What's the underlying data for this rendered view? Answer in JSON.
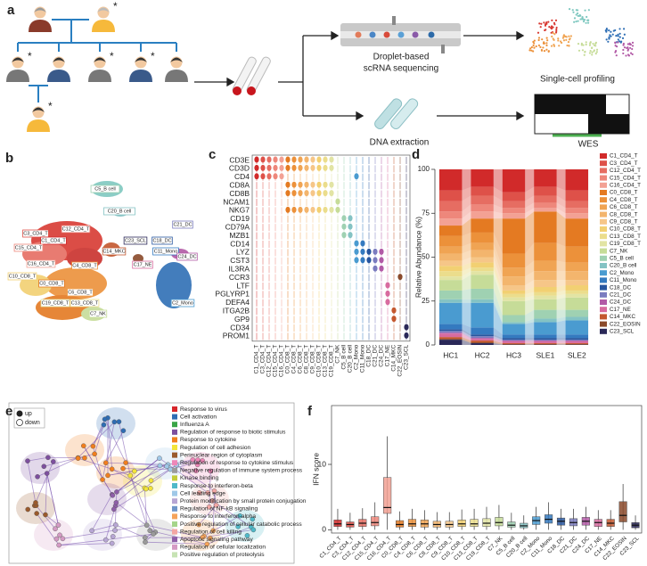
{
  "panel_labels": [
    "a",
    "b",
    "c",
    "d",
    "e",
    "f"
  ],
  "panel_a": {
    "marker": "*",
    "sequencing": [
      "Droplet-based",
      "scRNA sequencing"
    ],
    "profiling": "Single-cell profiling",
    "extraction": "DNA extraction",
    "wes": "WES"
  },
  "panel_b": {
    "clusters": [
      "C5_B cell",
      "C20_B cell",
      "C21_DC",
      "C23_SCL",
      "C18_DC",
      "C14_MKC",
      "C11_Mono",
      "C24_DC",
      "C2_Mono",
      "C17_NE",
      "C7_NK",
      "C3_CD4_T",
      "C12_CD4_T",
      "C1_CD4_T",
      "C15_CD4_T",
      "C16_CD4_T",
      "C4_CD8_T",
      "C0_CD8_T",
      "C10_CD8_T",
      "C6_CD8_T",
      "C19_CD8_T",
      "C13_CD8_T"
    ]
  },
  "panel_c": {
    "genes": [
      "CD3E",
      "CD3D",
      "CD4",
      "CD8A",
      "CD8B",
      "NCAM1",
      "NKG7",
      "CD19",
      "CD79A",
      "MZB1",
      "CD14",
      "LYZ",
      "CST3",
      "IL3RA",
      "CCR3",
      "LTF",
      "PGLYRP1",
      "DEFA4",
      "ITGA2B",
      "GP9",
      "CD34",
      "PROM1"
    ]
  },
  "panel_e": {
    "legend": [
      "up",
      "down"
    ],
    "terms": [
      {
        "name": "Response to virus",
        "color": "#d7262b"
      },
      {
        "name": "Cell activation",
        "color": "#2e6db4"
      },
      {
        "name": "Influenza A",
        "color": "#3aa547"
      },
      {
        "name": "Regulation of response to biotic stimulus",
        "color": "#7d4f9e"
      },
      {
        "name": "Response to cytokine",
        "color": "#f07e1e"
      },
      {
        "name": "Regulation of cell adhesion",
        "color": "#f3e43a"
      },
      {
        "name": "Perinuclear region of cytoplasm",
        "color": "#9a5a2c"
      },
      {
        "name": "Regulation of response to cytokine stimulus",
        "color": "#ee86b8"
      },
      {
        "name": "Negative regulation of immune system process",
        "color": "#9a9a9a"
      },
      {
        "name": "Kinase binding",
        "color": "#c3cc3a"
      },
      {
        "name": "Response to interferon-beta",
        "color": "#4fb9c9"
      },
      {
        "name": "Cell leading edge",
        "color": "#9fc8e8"
      },
      {
        "name": "Protein modification by small protein conjugation",
        "color": "#b7a6d4"
      },
      {
        "name": "Regulation of NF-kB signaling",
        "color": "#6f96c9"
      },
      {
        "name": "Response to interferon-alpha",
        "color": "#f5a35a"
      },
      {
        "name": "Positive regulation of cellular catabolic process",
        "color": "#a5d58a"
      },
      {
        "name": "Regulation of cell killing",
        "color": "#f3a7a4"
      },
      {
        "name": "Apoptotic signaling pathway",
        "color": "#8e5ea8"
      },
      {
        "name": "Regulation of cellular localization",
        "color": "#d49ac4"
      },
      {
        "name": "Positive regulation of proteolysis",
        "color": "#c7e3b4"
      }
    ]
  },
  "chart_data": [
    {
      "type": "bar",
      "stacked": true,
      "y_label": "Relative Abundance (%)",
      "categories": [
        "HC1",
        "HC2",
        "HC3",
        "SLE1",
        "SLE2"
      ],
      "ylim": [
        0,
        100
      ],
      "yticks": [
        0,
        25,
        50,
        75,
        100
      ],
      "series": [
        {
          "name": "C1_CD4_T",
          "color": "#d12a2a",
          "values": [
            12,
            10,
            13,
            10,
            12
          ]
        },
        {
          "name": "C3_CD4_T",
          "color": "#de5149",
          "values": [
            6,
            5,
            5,
            5,
            6
          ]
        },
        {
          "name": "C12_CD4_T",
          "color": "#e66d62",
          "values": [
            6,
            5,
            4,
            4,
            4
          ]
        },
        {
          "name": "C15_CD4_T",
          "color": "#ee877b",
          "values": [
            4,
            4,
            3,
            3,
            3
          ]
        },
        {
          "name": "C16_CD4_T",
          "color": "#f3a194",
          "values": [
            4,
            4,
            3,
            2,
            3
          ]
        },
        {
          "name": "C0_CD8_T",
          "color": "#e47a22",
          "values": [
            6,
            8,
            20,
            18,
            16
          ]
        },
        {
          "name": "C4_CD8_T",
          "color": "#ec913a",
          "values": [
            6,
            6,
            8,
            10,
            9
          ]
        },
        {
          "name": "C6_CD8_T",
          "color": "#f0a453",
          "values": [
            4,
            4,
            5,
            6,
            5
          ]
        },
        {
          "name": "C8_CD8_T",
          "color": "#f3b56d",
          "values": [
            4,
            4,
            5,
            5,
            5
          ]
        },
        {
          "name": "C9_CD8_T",
          "color": "#f6c688",
          "values": [
            3,
            3,
            3,
            4,
            3
          ]
        },
        {
          "name": "C10_CD8_T",
          "color": "#f2d072",
          "values": [
            3,
            3,
            2,
            3,
            3
          ]
        },
        {
          "name": "C13_CD8_T",
          "color": "#ebdd8c",
          "values": [
            3,
            2,
            2,
            2,
            2
          ]
        },
        {
          "name": "C19_CD8_T",
          "color": "#e2e4a4",
          "values": [
            2,
            2,
            2,
            2,
            2
          ]
        },
        {
          "name": "C7_NK",
          "color": "#c6dc98",
          "values": [
            6,
            8,
            8,
            6,
            7
          ]
        },
        {
          "name": "C5_B cell",
          "color": "#9fd1b2",
          "values": [
            5,
            6,
            4,
            5,
            4
          ]
        },
        {
          "name": "C20_B cell",
          "color": "#84c3c4",
          "values": [
            2,
            2,
            1,
            2,
            2
          ]
        },
        {
          "name": "C2_Mono",
          "color": "#4a9bd0",
          "values": [
            12,
            14,
            6,
            7,
            8
          ]
        },
        {
          "name": "C11_Mono",
          "color": "#347ac0",
          "values": [
            3,
            4,
            2,
            2,
            2
          ]
        },
        {
          "name": "C18_DC",
          "color": "#27569f",
          "values": [
            1,
            1,
            1,
            1,
            1
          ]
        },
        {
          "name": "C21_DC",
          "color": "#7b7cbf",
          "values": [
            1,
            1,
            0.5,
            0.5,
            0.5
          ]
        },
        {
          "name": "C24_DC",
          "color": "#b25aa6",
          "values": [
            0.5,
            0.5,
            0.5,
            0.5,
            0.5
          ]
        },
        {
          "name": "C17_NE",
          "color": "#d86b9f",
          "values": [
            2,
            1,
            1,
            1,
            1
          ]
        },
        {
          "name": "C14_MKC",
          "color": "#c4582f",
          "values": [
            1,
            1,
            0.5,
            0.5,
            0.5
          ]
        },
        {
          "name": "C22_EOSIN",
          "color": "#8a4a2b",
          "values": [
            0.5,
            0.5,
            0.3,
            0.3,
            0.3
          ]
        },
        {
          "name": "C23_SCL",
          "color": "#2a2858",
          "values": [
            3,
            1,
            0.2,
            0.2,
            0.2
          ]
        }
      ]
    },
    {
      "type": "box",
      "y_label": "IFN score",
      "categories": [
        "C1_CD4_T",
        "C3_CD4_T",
        "C12_CD4_T",
        "C15_CD4_T",
        "C16_CD4_T",
        "C0_CD8_T",
        "C4_CD8_T",
        "C6_CD8_T",
        "C8_CD8_T",
        "C9_CD8_T",
        "C10_CD8_T",
        "C13_CD8_T",
        "C19_CD8_T",
        "C7_NK",
        "C5_B cell",
        "C20_B cell",
        "C2_Mono",
        "C11_Mono",
        "C18_DC",
        "C21_DC",
        "C24_DC",
        "C17_NE",
        "C14_MKC",
        "C22_EOSIN",
        "C23_SCL"
      ],
      "ylim": [
        -0.5,
        19
      ],
      "yticks": [
        0,
        10
      ],
      "min": [
        0,
        0,
        0,
        0,
        0,
        0,
        0,
        0,
        0,
        0,
        0,
        0,
        0,
        0,
        0,
        0,
        0,
        0,
        0,
        0,
        0,
        0,
        0,
        0,
        0
      ],
      "q1": [
        0.5,
        0.4,
        0.5,
        0.6,
        2.5,
        0.4,
        0.5,
        0.4,
        0.4,
        0.4,
        0.5,
        0.5,
        0.5,
        0.6,
        0.4,
        0.3,
        0.8,
        1.0,
        0.7,
        0.6,
        0.7,
        0.5,
        0.5,
        1.2,
        0.3
      ],
      "median": [
        0.9,
        0.8,
        1.0,
        1.1,
        3.4,
        0.8,
        0.9,
        0.9,
        0.8,
        0.8,
        0.9,
        0.9,
        1.0,
        1.1,
        0.7,
        0.6,
        1.4,
        1.6,
        1.3,
        1.1,
        1.3,
        1.1,
        1.0,
        2.2,
        0.7
      ],
      "q3": [
        1.5,
        1.2,
        1.6,
        2.0,
        8.0,
        1.4,
        1.6,
        1.5,
        1.3,
        1.3,
        1.5,
        1.6,
        1.7,
        1.9,
        1.2,
        1.0,
        2.0,
        2.3,
        1.8,
        1.7,
        1.9,
        1.6,
        1.6,
        4.3,
        1.1
      ],
      "max": [
        3.2,
        2.6,
        3.3,
        4.2,
        14.3,
        2.8,
        3.2,
        3.0,
        2.7,
        2.7,
        3.1,
        3.2,
        3.5,
        3.8,
        2.6,
        2.2,
        3.5,
        4.2,
        3.2,
        3.2,
        3.5,
        3.0,
        3.0,
        7.0,
        2.2
      ]
    }
  ]
}
